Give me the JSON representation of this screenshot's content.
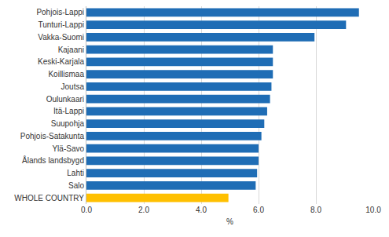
{
  "chart_data": {
    "type": "bar",
    "orientation": "horizontal",
    "x_label": "%",
    "categories": [
      "Pohjois-Lappi",
      "Tunturi-Lappi",
      "Vakka-Suomi",
      "Kajaani",
      "Keski-Karjala",
      "Koillismaa",
      "Joutsa",
      "Oulunkaari",
      "Itä-Lappi",
      "Suupohja",
      "Pohjois-Satakunta",
      "Ylä-Savo",
      "Ålands landsbygd",
      "Lahti",
      "Salo",
      "WHOLE COUNTRY"
    ],
    "values": [
      9.5,
      9.05,
      7.95,
      6.5,
      6.5,
      6.5,
      6.45,
      6.4,
      6.3,
      6.2,
      6.1,
      6.0,
      6.0,
      5.95,
      5.9,
      4.95
    ],
    "colors": [
      "#1f6db5",
      "#1f6db5",
      "#1f6db5",
      "#1f6db5",
      "#1f6db5",
      "#1f6db5",
      "#1f6db5",
      "#1f6db5",
      "#1f6db5",
      "#1f6db5",
      "#1f6db5",
      "#1f6db5",
      "#1f6db5",
      "#1f6db5",
      "#1f6db5",
      "#ffc000"
    ],
    "xlim": [
      0,
      10
    ],
    "xticks": [
      {
        "value": 0,
        "label": "0.0"
      },
      {
        "value": 2,
        "label": "2.0"
      },
      {
        "value": 4,
        "label": "4.0"
      },
      {
        "value": 6,
        "label": "6.0"
      },
      {
        "value": 8,
        "label": "8.0"
      },
      {
        "value": 10,
        "label": "10.0"
      }
    ],
    "grid": true
  }
}
